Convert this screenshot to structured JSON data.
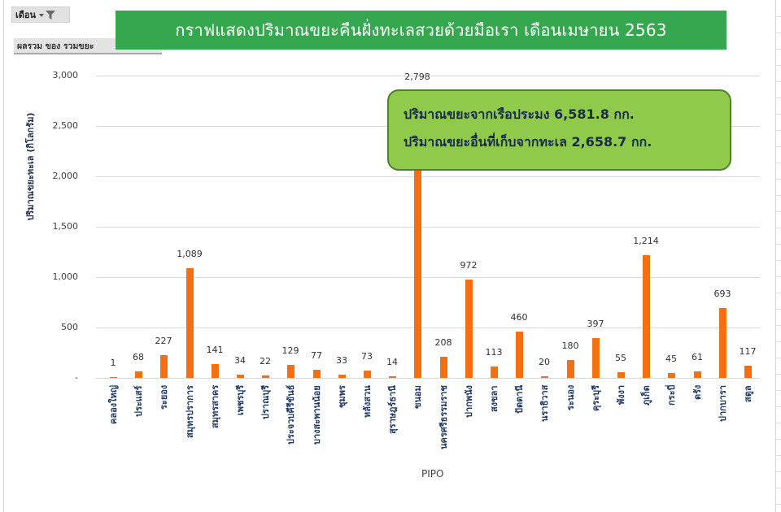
{
  "pivot": {
    "field_button_label": "เดือน",
    "value_button_label": "ผลรวม ของ รวมขยะ"
  },
  "colors": {
    "title_bg": "#35a84f",
    "bar": "#f46f0f",
    "callout_bg": "#8fca4b",
    "callout_border": "#4f7f35"
  },
  "callout": {
    "line1": "ปริมาณขยะจากเรือประมง  6,581.8 กก.",
    "line2": "ปริมาณขยะอื่นที่เก็บจากทะเล 2,658.7 กก."
  },
  "chart_data": {
    "type": "bar",
    "title": "กราฟแสดงปริมาณขยะคืนฝั่งทะเลสวยด้วยมือเรา เดือนเมษายน 2563",
    "xlabel": "PIPO",
    "ylabel": "ปริมาณขยะทะเล (กิโลกรัม)",
    "ylim": [
      0,
      3000
    ],
    "yticks": [
      "-",
      "500",
      "1,000",
      "1,500",
      "2,000",
      "2,500",
      "3,000"
    ],
    "grid": true,
    "legend": "none",
    "categories": [
      "คลองใหญ่",
      "ประแสร์",
      "ระยอง",
      "สมุทรปราการ",
      "สมุทรสาคร",
      "เพชรบุรี",
      "ปราณบุรี",
      "ประจวบคีรีขันธ์",
      "บางสะพานน้อย",
      "ชุมพร",
      "หลังสวน",
      "สุราษฎร์ธานี",
      "ขนอม",
      "นครศรีธรรมราช",
      "ปากพนัง",
      "สงขลา",
      "ปัตตานี",
      "นราธิวาส",
      "ระนอง",
      "คุระบุรี",
      "พังงา",
      "ภูเก็ต",
      "กระบี่",
      "ตรัง",
      "ปากบารา",
      "สตูล"
    ],
    "values": [
      1,
      68,
      227,
      1089,
      141,
      34,
      22,
      129,
      77,
      33,
      73,
      14,
      2798,
      208,
      972,
      113,
      460,
      20,
      180,
      397,
      55,
      1214,
      45,
      61,
      693,
      117
    ],
    "value_labels": [
      "1",
      "68",
      "227",
      "1,089",
      "141",
      "34",
      "22",
      "129",
      "77",
      "33",
      "73",
      "14",
      "2,798",
      "208",
      "972",
      "113",
      "460",
      "20",
      "180",
      "397",
      "55",
      "1,214",
      "45",
      "61",
      "693",
      "117"
    ]
  }
}
